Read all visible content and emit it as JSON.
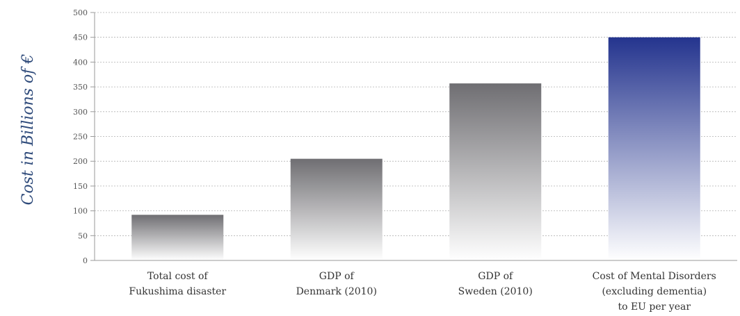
{
  "chart_data": {
    "type": "bar",
    "title": "",
    "xlabel": "",
    "ylabel": "Cost in Billions of €",
    "ylim": [
      0,
      500
    ],
    "yticks": [
      0,
      50,
      100,
      150,
      200,
      250,
      300,
      350,
      400,
      450,
      500
    ],
    "grid": true,
    "categories": [
      [
        "Total cost of",
        "Fukushima disaster"
      ],
      [
        "GDP of",
        "Denmark (2010)"
      ],
      [
        "GDP of",
        "Sweden (2010)"
      ],
      [
        "Cost of Mental Disorders",
        "(excluding dementia)",
        "to EU per year"
      ]
    ],
    "values": [
      92,
      205,
      357,
      450
    ],
    "colors": [
      "gray",
      "gray",
      "gray",
      "blue"
    ],
    "palette": {
      "gray_top": "#6f6e72",
      "gray_bottom": "#ffffff",
      "blue_top": "#24348e",
      "blue_bottom": "#ffffff"
    }
  }
}
